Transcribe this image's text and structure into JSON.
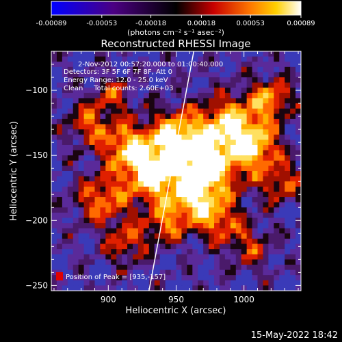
{
  "colorbar": {
    "ticks": [
      "-0.00089",
      "-0.00053",
      "-0.00018",
      "0.00018",
      "0.00053",
      "0.00089"
    ],
    "tick_values": [
      -0.00089,
      -0.00053,
      -0.00018,
      0.00018,
      0.00053,
      0.00089
    ],
    "range": [
      -0.00089,
      0.00089
    ],
    "unit_label": "(photons cm⁻² s⁻¹ asec⁻²)",
    "colors": [
      "#0000ff",
      "#000000",
      "#ff0000",
      "#ffcc00",
      "#ffffff"
    ]
  },
  "chart_data": {
    "type": "heatmap",
    "title": "Reconstructed RHESSI Image",
    "xlabel": "Heliocentric X (arcsec)",
    "ylabel": "Heliocentric Y (arcsec)",
    "xlim": [
      858,
      1042
    ],
    "ylim": [
      -254,
      -70
    ],
    "x_ticks": [
      900,
      950,
      1000
    ],
    "y_ticks": [
      -100,
      -150,
      -200,
      -250
    ],
    "annotations": [
      "2-Nov-2012 00:57:20.000 to 01:00:40.000",
      "Detectors: 3F 5F 6F 7F 8F, Att 0",
      "Energy Range: 12.0 - 25.0 keV",
      "Clean     Total counts: 2.60E+03"
    ],
    "peak_label": "Position of Peak = [935,-157]",
    "peak_position": [
      935,
      -157
    ],
    "limb_line": [
      [
        930,
        -254
      ],
      [
        963,
        -70
      ]
    ],
    "grid": false
  },
  "footer": {
    "date": "15-May-2022 18:42"
  }
}
